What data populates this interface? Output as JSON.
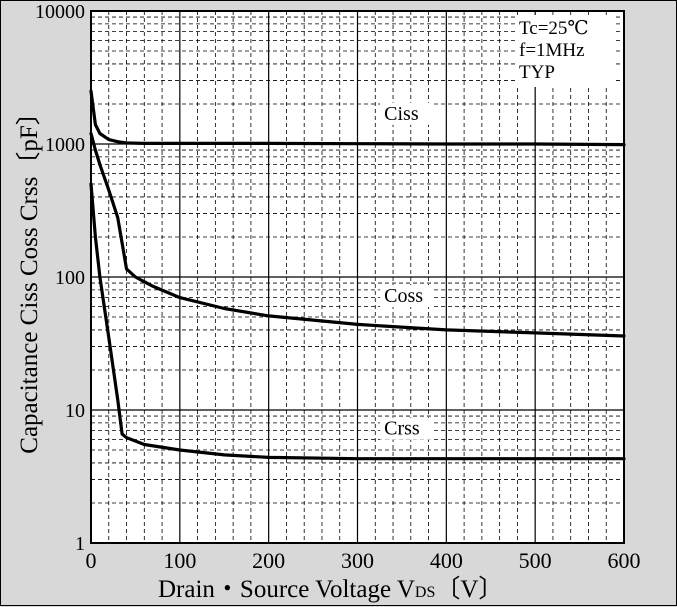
{
  "chart_data": {
    "type": "line",
    "title": "",
    "xlabel": "Drain・Source Voltage V",
    "xlabel_sub": "DS",
    "xlabel_unit": "〔V〕",
    "ylabel": "Capacitance  Ciss Coss Crss〔pF〕",
    "xlim": [
      0,
      600
    ],
    "ylim": [
      1,
      10000
    ],
    "yscale": "log",
    "grid": true,
    "x_ticks": [
      0,
      100,
      200,
      300,
      400,
      500,
      600
    ],
    "x_tick_labels": [
      "0",
      "100",
      "200",
      "300",
      "400",
      "500",
      "600"
    ],
    "y_ticks": [
      1,
      10,
      100,
      1000,
      10000
    ],
    "y_tick_labels": [
      "1",
      "10",
      "100",
      "1000",
      "10000"
    ],
    "conditions": [
      "Tc=25℃",
      "f=1MHz",
      "TYP"
    ],
    "series": [
      {
        "name": "Ciss",
        "x": [
          0,
          5,
          10,
          20,
          30,
          40,
          60,
          100,
          200,
          300,
          400,
          500,
          600
        ],
        "y": [
          2500,
          1400,
          1200,
          1080,
          1040,
          1020,
          1010,
          1010,
          1010,
          1005,
          1000,
          1000,
          990
        ]
      },
      {
        "name": "Coss",
        "x": [
          0,
          5,
          10,
          20,
          30,
          35,
          40,
          50,
          70,
          100,
          150,
          200,
          300,
          400,
          500,
          600
        ],
        "y": [
          1200,
          900,
          700,
          450,
          280,
          180,
          115,
          100,
          85,
          70,
          58,
          51,
          44,
          40,
          38,
          36
        ]
      },
      {
        "name": "Crss",
        "x": [
          0,
          5,
          10,
          20,
          30,
          35,
          40,
          60,
          100,
          150,
          200,
          300,
          400,
          500,
          600
        ],
        "y": [
          500,
          200,
          100,
          35,
          12,
          6.6,
          6.2,
          5.5,
          5.0,
          4.6,
          4.4,
          4.3,
          4.3,
          4.3,
          4.3
        ]
      }
    ]
  }
}
